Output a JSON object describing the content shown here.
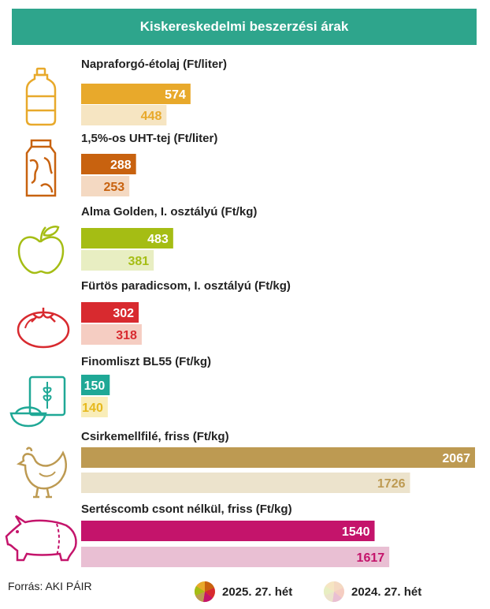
{
  "header": {
    "title": "Kiskereskedelmi beszerzési árak"
  },
  "footer": {
    "source": "Forrás: AKI PÁIR",
    "legend": [
      {
        "label": "2025. 27. hét",
        "style": "multicolor"
      },
      {
        "label": "2024. 27. hét",
        "style": "pastel"
      }
    ]
  },
  "chart_data": {
    "type": "bar",
    "title": "Kiskereskedelmi beszerzési árak",
    "series_labels": [
      "2025. 27. hét",
      "2024. 27. hét"
    ],
    "items": [
      {
        "label": "Napraforgó-étolaj (Ft/liter)",
        "icon": "oil-bottle-icon",
        "v2025": 574,
        "v2024": 448,
        "color": "#e8a92b",
        "light": "#f6e5c2",
        "lightText": "#e8a92b"
      },
      {
        "label": "1,5%-os UHT-tej (Ft/liter)",
        "icon": "milk-carton-icon",
        "v2025": 288,
        "v2024": 253,
        "color": "#c8620f",
        "light": "#f4d9c2",
        "lightText": "#c8620f"
      },
      {
        "label": "Alma Golden, I. osztályú (Ft/kg)",
        "icon": "apple-icon",
        "v2025": 483,
        "v2024": 381,
        "color": "#a5bd14",
        "light": "#e8eec2",
        "lightText": "#a5bd14"
      },
      {
        "label": "Fürtös paradicsom, I. osztályú (Ft/kg)",
        "icon": "tomato-icon",
        "v2025": 302,
        "v2024": 318,
        "color": "#d82a2f",
        "light": "#f5cdc2",
        "lightText": "#d82a2f"
      },
      {
        "label": "Finomliszt BL55 (Ft/kg)",
        "icon": "flour-icon",
        "v2025": 150,
        "v2024": 140,
        "color": "#1fa896",
        "light": "#f9edb8",
        "lightText": "#e6b91e"
      },
      {
        "label": "Csirkemellfilé, friss (Ft/kg)",
        "icon": "chicken-icon",
        "v2025": 2067,
        "v2024": 1726,
        "color": "#bd9a52",
        "light": "#ece3cc",
        "lightText": "#bd9a52"
      },
      {
        "label": "Sertéscomb csont nélkül, friss (Ft/kg)",
        "icon": "pig-icon",
        "v2025": 1540,
        "v2024": 1617,
        "color": "#c4146b",
        "light": "#e9bfd3",
        "lightText": "#c4146b"
      }
    ]
  }
}
